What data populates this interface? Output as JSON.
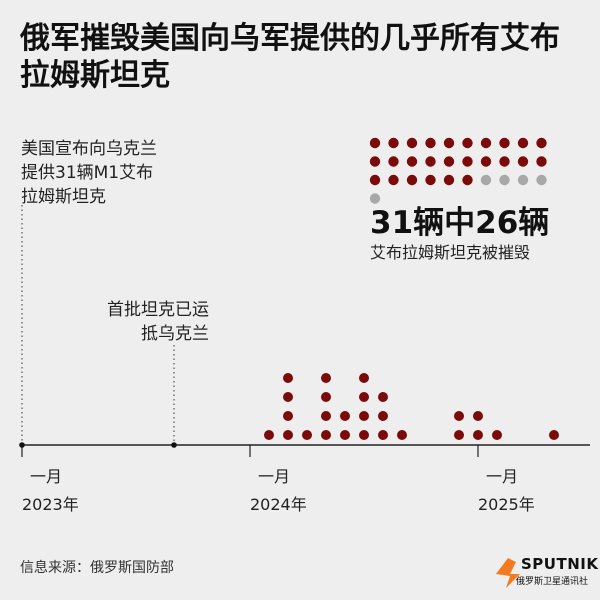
{
  "title": "俄军摧毁美国向乌军提供的几乎所有艾布拉姆斯坦克",
  "notes": {
    "announcement": [
      "美国宣布向乌克兰",
      "提供31辆M1艾布",
      "拉姆斯坦克"
    ],
    "arrival": [
      "首批坦克已运",
      "抵乌克兰"
    ]
  },
  "stat": {
    "headline": "31辆中26辆",
    "subline": "艾布拉姆斯坦克被摧毁",
    "total": 31,
    "destroyed": 26
  },
  "source": "信息来源：俄罗斯国防部",
  "logo": {
    "word": "SPUTNIK",
    "sub": "俄罗斯卫星通讯社"
  },
  "colors": {
    "destroyed": "#7b0a0a",
    "remaining": "#a8a8a8",
    "axis": "#222222",
    "background": "#eeeeee"
  },
  "chart_data": {
    "type": "scatter",
    "x_axis": {
      "ticks": [
        {
          "month": "一月",
          "year": "2023年"
        },
        {
          "month": "一月",
          "year": "2024年"
        },
        {
          "month": "一月",
          "year": "2025年"
        }
      ]
    },
    "events": [
      {
        "date": "2023-01",
        "label": "美国宣布向乌克兰提供31辆M1艾布拉姆斯坦克"
      },
      {
        "date": "2023-09",
        "label": "首批坦克已运抵乌克兰"
      }
    ],
    "destroyed_by_period": [
      {
        "date": "2024-02",
        "count": 1
      },
      {
        "date": "2024-03",
        "count": 4
      },
      {
        "date": "2024-04",
        "count": 1
      },
      {
        "date": "2024-05",
        "count": 4
      },
      {
        "date": "2024-06",
        "count": 2
      },
      {
        "date": "2024-07",
        "count": 4
      },
      {
        "date": "2024-08",
        "count": 3
      },
      {
        "date": "2024-09",
        "count": 1
      },
      {
        "date": "2024-12",
        "count": 2
      },
      {
        "date": "2025-01",
        "count": 2
      },
      {
        "date": "2025-02",
        "count": 1
      },
      {
        "date": "2025-05",
        "count": 1
      }
    ]
  }
}
